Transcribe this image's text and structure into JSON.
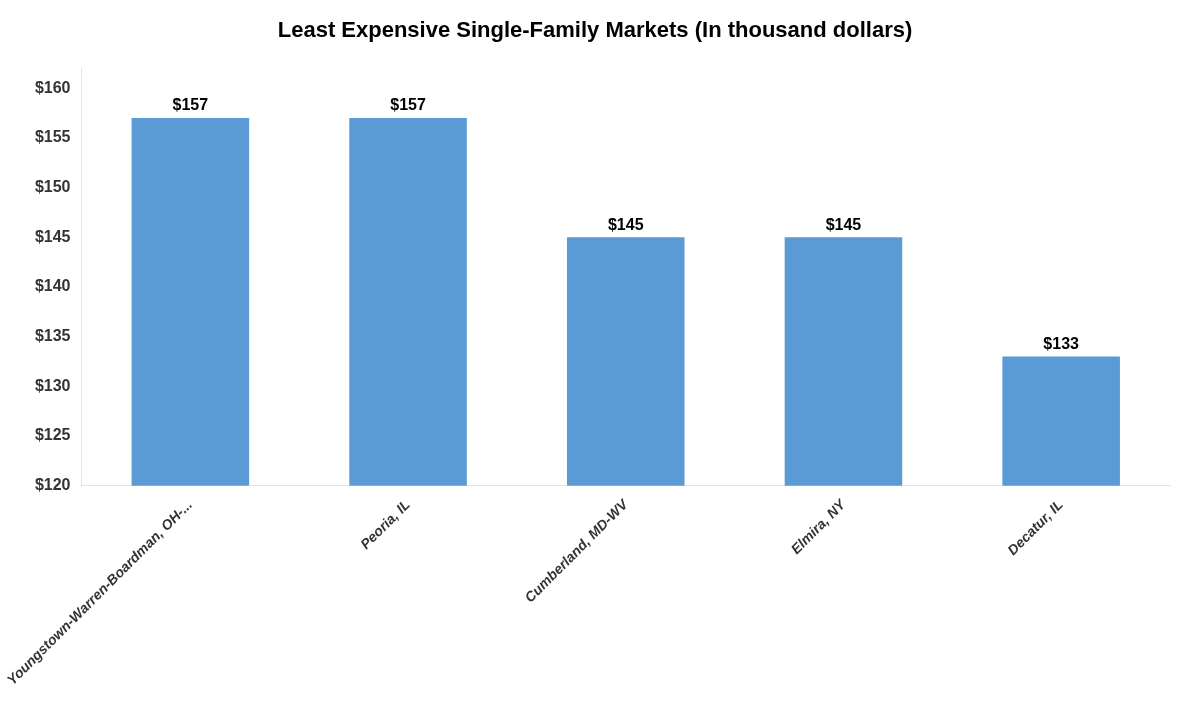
{
  "chart_data": {
    "type": "bar",
    "title": "Least Expensive Single-Family Markets (In thousand dollars)",
    "categories": [
      "Youngstown-Warren-Boardman, OH-...",
      "Peoria, IL",
      "Cumberland, MD-WV",
      "Elmira, NY",
      "Decatur, IL"
    ],
    "values": [
      157,
      157,
      145,
      145,
      133
    ],
    "value_labels": [
      "$157",
      "$157",
      "$145",
      "$145",
      "$133"
    ],
    "data_labels": true,
    "color": "#5B9BD5",
    "ylim": [
      120,
      162
    ],
    "yticks": [
      {
        "value": 120,
        "label": "$120"
      },
      {
        "value": 125,
        "label": "$125"
      },
      {
        "value": 130,
        "label": "$130"
      },
      {
        "value": 135,
        "label": "$135"
      },
      {
        "value": 140,
        "label": "$140"
      },
      {
        "value": 145,
        "label": "$145"
      },
      {
        "value": 150,
        "label": "$150"
      },
      {
        "value": 155,
        "label": "$155"
      },
      {
        "value": 160,
        "label": "$160"
      }
    ],
    "grid": false
  }
}
